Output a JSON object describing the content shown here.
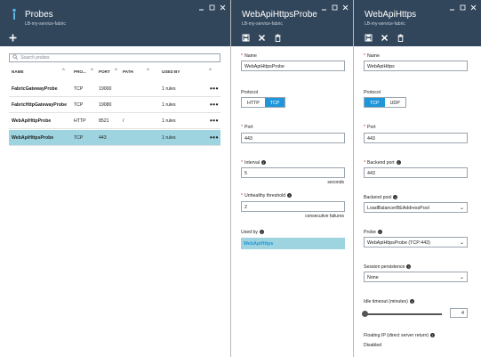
{
  "probes_blade": {
    "title": "Probes",
    "subtitle": "LB-my-service-fabric",
    "search_placeholder": "Search probes",
    "columns": [
      "NAME",
      "PRO...",
      "PORT",
      "PATH",
      "USED BY"
    ],
    "rows": [
      {
        "name": "FabricGatewayProbe",
        "protocol": "TCP",
        "port": "19000",
        "path": "",
        "used_by": "1 rules",
        "selected": false
      },
      {
        "name": "FabricHttpGatewayProbe",
        "protocol": "TCP",
        "port": "19080",
        "path": "",
        "used_by": "1 rules",
        "selected": false
      },
      {
        "name": "WebApiHttpProbe",
        "protocol": "HTTP",
        "port": "8521",
        "path": "/",
        "used_by": "1 rules",
        "selected": false
      },
      {
        "name": "WebApiHttpsProbe",
        "protocol": "TCP",
        "port": "443",
        "path": "",
        "used_by": "1 rules",
        "selected": true
      }
    ],
    "row_menu": "•••"
  },
  "probe_blade": {
    "title": "WebApiHttpsProbe",
    "subtitle": "LB-my-service-fabric",
    "name_label": "Name",
    "name_value": "WebApiHttpsProbe",
    "protocol_label": "Protocol",
    "protocol_options": [
      "HTTP",
      "TCP"
    ],
    "protocol_selected": "TCP",
    "port_label": "Port",
    "port_value": "443",
    "interval_label": "Interval",
    "interval_value": "5",
    "interval_unit": "seconds",
    "threshold_label": "Unhealthy threshold",
    "threshold_value": "2",
    "threshold_unit": "consecutive failures",
    "used_by_label": "Used by",
    "used_by_value": "WebApiHttps"
  },
  "rule_blade": {
    "title": "WebApiHttps",
    "subtitle": "LB-my-service-fabric",
    "name_label": "Name",
    "name_value": "WebApiHttps",
    "protocol_label": "Protocol",
    "protocol_options": [
      "TCP",
      "UDP"
    ],
    "protocol_selected": "TCP",
    "port_label": "Port",
    "port_value": "443",
    "backend_port_label": "Backend port",
    "backend_port_value": "443",
    "backend_pool_label": "Backend pool",
    "backend_pool_value": "LoadBalancerBEAddressPool",
    "probe_label": "Probe",
    "probe_value": "WebApiHttpsProbe (TCP:443)",
    "session_label": "Session persistence",
    "session_value": "None",
    "idle_label": "Idle timeout (minutes)",
    "idle_value": "4",
    "floating_label": "Floating IP (direct server return)",
    "floating_value": "Disabled"
  },
  "colors": {
    "header_bg": "#32465b",
    "accent": "#1e96dc",
    "selected_row": "#9ed4e0",
    "required": "#c82a1f"
  }
}
